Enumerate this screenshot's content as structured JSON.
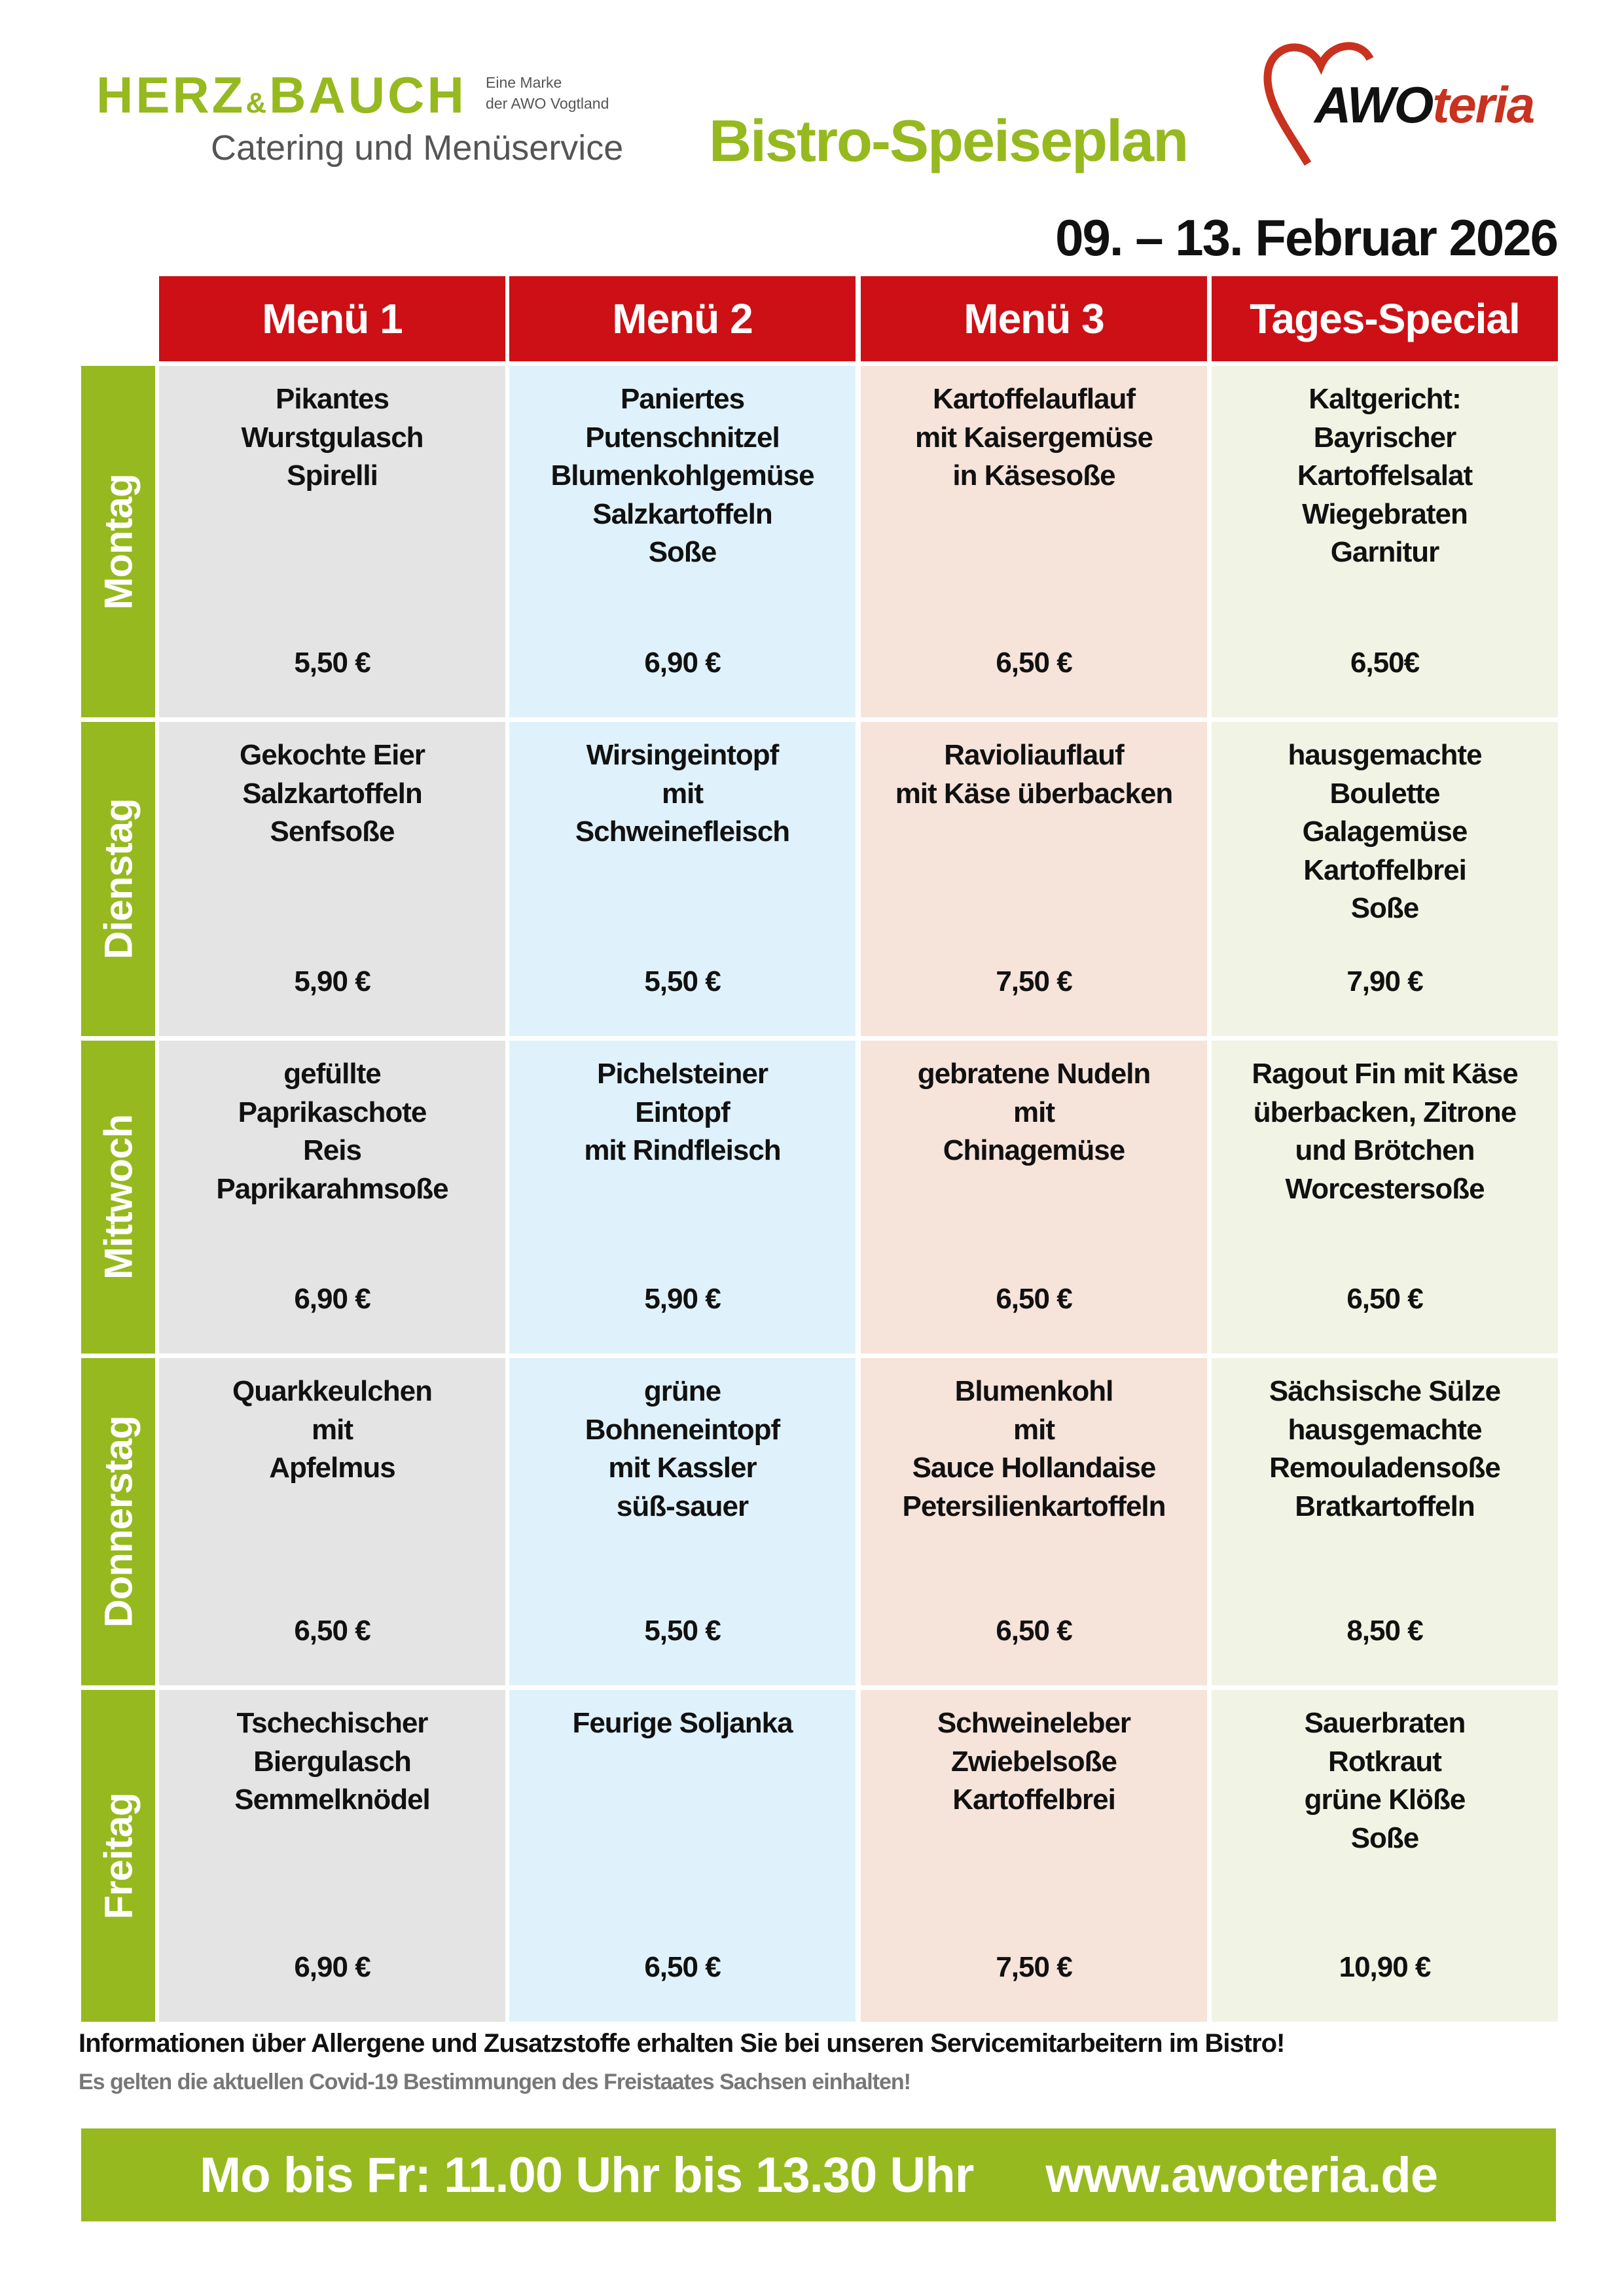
{
  "header": {
    "brand_left": "HERZ",
    "brand_amp": "&",
    "brand_right": "BAUCH",
    "brand_sub": "Eine Marke\nder AWO Vogtland",
    "brand_tagline": "Catering und Menüservice",
    "title": "Bistro-Speiseplan",
    "awo_logo_a": "AWO",
    "awo_logo_b": "teria",
    "date_range": "09. – 13. Februar 2026"
  },
  "colors": {
    "accent_red": "#cc1016",
    "accent_green": "#96b91f",
    "col1": "#e4e4e4",
    "col2": "#dff1fb",
    "col3": "#f6e3da",
    "col4": "#f1f4e4"
  },
  "columns": [
    "Menü 1",
    "Menü 2",
    "Menü 3",
    "Tages-Special"
  ],
  "days": [
    {
      "day": "Montag",
      "items": [
        {
          "dish": "Pikantes\nWurstgulasch\nSpirelli",
          "price": "5,50 €"
        },
        {
          "dish": "Paniertes\nPutenschnitzel\nBlumenkohlgemüse\nSalzkartoffeln\nSoße",
          "price": "6,90 €"
        },
        {
          "dish": "Kartoffelauflauf\nmit Kaisergemüse\nin Käsesoße",
          "price": "6,50 €"
        },
        {
          "dish": "Kaltgericht:\nBayrischer\nKartoffelsalat\nWiegebraten\nGarnitur",
          "price": "6,50€"
        }
      ]
    },
    {
      "day": "Dienstag",
      "items": [
        {
          "dish": "Gekochte Eier\nSalzkartoffeln\nSenfsoße",
          "price": "5,90 €"
        },
        {
          "dish": "Wirsingeintopf\nmit\nSchweinefleisch",
          "price": "5,50 €"
        },
        {
          "dish": "Ravioliauflauf\nmit Käse überbacken",
          "price": "7,50 €"
        },
        {
          "dish": "hausgemachte\nBoulette\nGalagemüse\nKartoffelbrei\nSoße",
          "price": "7,90 €"
        }
      ]
    },
    {
      "day": "Mittwoch",
      "items": [
        {
          "dish": "gefüllte\nPaprikaschote\nReis\nPaprikarahmsoße",
          "price": "6,90 €"
        },
        {
          "dish": "Pichelsteiner\nEintopf\nmit Rindfleisch",
          "price": "5,90 €"
        },
        {
          "dish": "gebratene Nudeln\nmit\nChinagemüse",
          "price": "6,50 €"
        },
        {
          "dish": "Ragout Fin mit Käse\nüberbacken, Zitrone\nund Brötchen\nWorcestersoße",
          "price": "6,50 €"
        }
      ]
    },
    {
      "day": "Donnerstag",
      "items": [
        {
          "dish": "Quarkkeulchen\nmit\nApfelmus",
          "price": "6,50 €"
        },
        {
          "dish": "grüne\nBohneneintopf\nmit Kassler\nsüß-sauer",
          "price": "5,50 €"
        },
        {
          "dish": "Blumenkohl\nmit\nSauce Hollandaise\nPetersilienkartoffeln",
          "price": "6,50 €"
        },
        {
          "dish": "Sächsische Sülze\nhausgemachte\nRemouladensoße\nBratkartoffeln",
          "price": "8,50 €"
        }
      ]
    },
    {
      "day": "Freitag",
      "items": [
        {
          "dish": "Tschechischer\nBiergulasch\nSemmelknödel",
          "price": "6,90 €"
        },
        {
          "dish": "Feurige Soljanka",
          "price": "6,50 €"
        },
        {
          "dish": "Schweineleber\nZwiebelsoße\nKartoffelbrei",
          "price": "7,50 €"
        },
        {
          "dish": "Sauerbraten\nRotkraut\ngrüne Klöße\nSoße",
          "price": "10,90 €"
        }
      ]
    }
  ],
  "footer": {
    "info": "Informationen über Allergene und Zusatzstoffe erhalten Sie bei unseren Servicemitarbeitern im Bistro!",
    "covid": "Es gelten die aktuellen Covid-19 Bestimmungen des Freistaates Sachsen einhalten!",
    "hours": "Mo bis Fr: 11.00 Uhr bis 13.30 Uhr",
    "website": "www.awoteria.de"
  }
}
